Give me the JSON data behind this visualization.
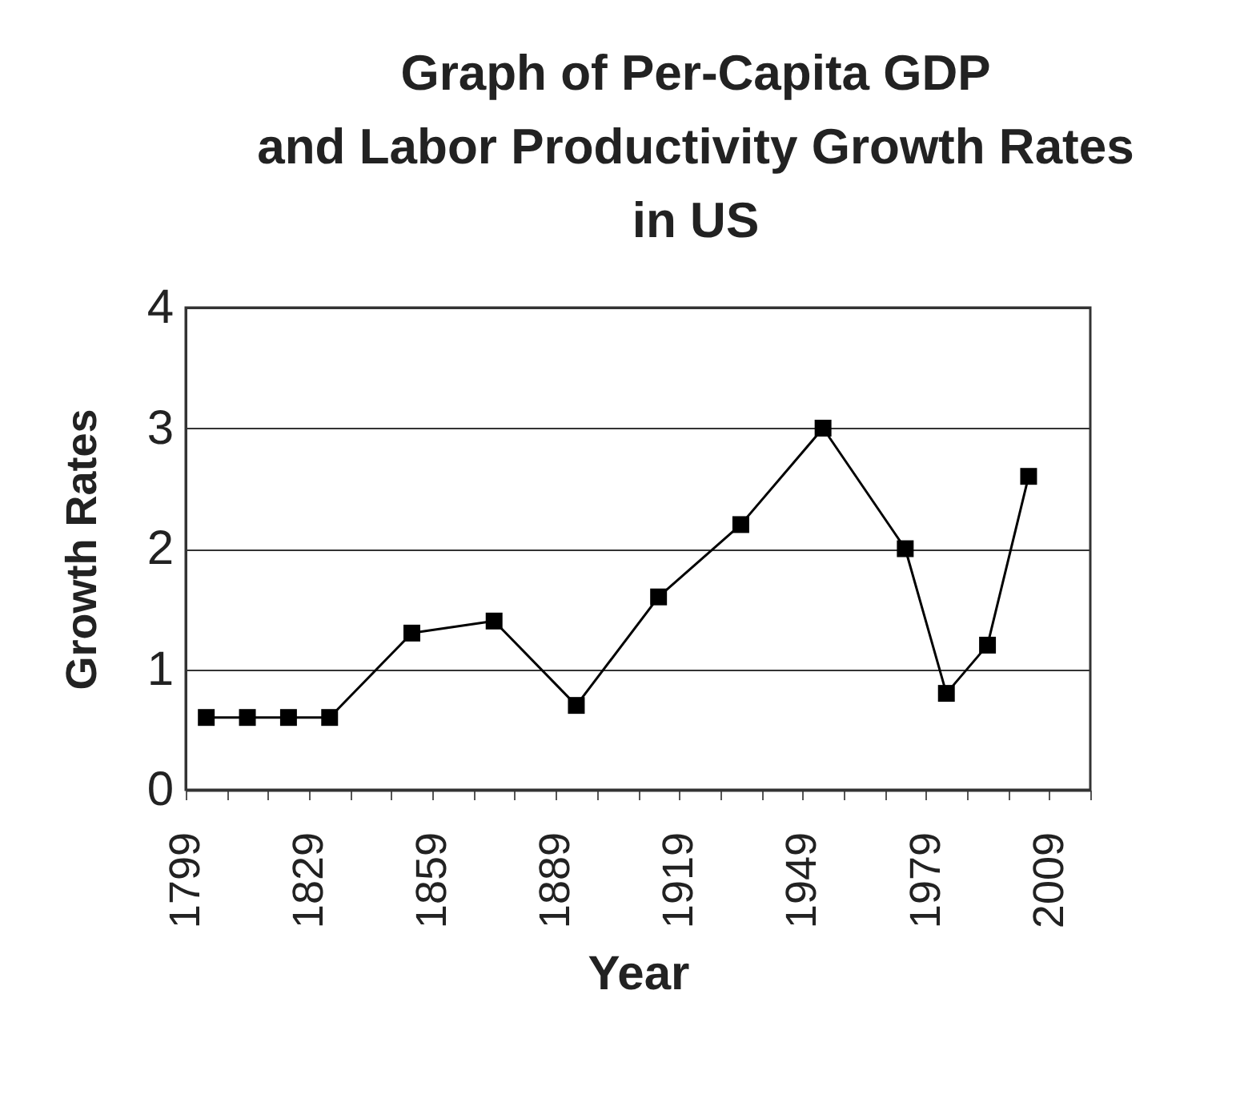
{
  "chart_data": {
    "type": "line",
    "title": "Graph of Per-Capita GDP\nand Labor Productivity Growth Rates\nin US",
    "xlabel": "Year",
    "ylabel": "Growth Rates",
    "x": [
      1804,
      1814,
      1824,
      1834,
      1854,
      1874,
      1894,
      1914,
      1934,
      1954,
      1974,
      1984,
      1994,
      2004
    ],
    "series": [
      {
        "color": "#000000",
        "values": [
          0.6,
          0.6,
          0.6,
          0.6,
          1.3,
          1.4,
          0.7,
          1.6,
          2.2,
          3.0,
          2.0,
          0.8,
          1.2,
          2.6
        ]
      }
    ],
    "xlim": [
      1799,
      2019
    ],
    "xticks": [
      1799,
      {
        "value": 1809,
        "label": null
      },
      {
        "value": 1819,
        "label": null
      },
      1829,
      {
        "value": 1839,
        "label": null
      },
      {
        "value": 1849,
        "label": null
      },
      1859,
      {
        "value": 1869,
        "label": null
      },
      {
        "value": 1879,
        "label": null
      },
      1889,
      {
        "value": 1899,
        "label": null
      },
      {
        "value": 1909,
        "label": null
      },
      1919,
      {
        "value": 1929,
        "label": null
      },
      {
        "value": 1939,
        "label": null
      },
      1949,
      {
        "value": 1959,
        "label": null
      },
      {
        "value": 1969,
        "label": null
      },
      1979,
      {
        "value": 1989,
        "label": null
      },
      {
        "value": 1999,
        "label": null
      },
      2009,
      {
        "value": 2019,
        "label": null
      }
    ],
    "ylim": [
      0,
      4
    ],
    "yticks": [
      0,
      1,
      2,
      3,
      4
    ],
    "grid": "y",
    "marker": "square",
    "line_style": "solid"
  }
}
